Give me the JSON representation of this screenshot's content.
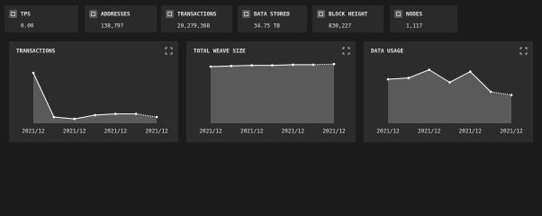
{
  "stats": [
    {
      "label": "TPS",
      "value": "0.00"
    },
    {
      "label": "ADDRESSES",
      "value": "138,797"
    },
    {
      "label": "TRANSACTIONS",
      "value": "20,279,368"
    },
    {
      "label": "DATA STORED",
      "value": "34.75 TB"
    },
    {
      "label": "BLOCK HEIGHT",
      "value": "830,227"
    },
    {
      "label": "NODES",
      "value": "1,117"
    }
  ],
  "chart_data": [
    {
      "type": "area",
      "title": "TRANSACTIONS",
      "categories": [
        "2021/12",
        null,
        "2021/12",
        null,
        "2021/12",
        null,
        "2021/12"
      ],
      "values": [
        80,
        10,
        7,
        13,
        15,
        15,
        10
      ],
      "ylim": [
        0,
        100
      ],
      "color": "#5a5a5a",
      "line_color": "#ffffff",
      "last_segment_dotted": true
    },
    {
      "type": "area",
      "title": "TOTAL WEAVE SIZE",
      "categories": [
        "2021/12",
        null,
        "2021/12",
        null,
        "2021/12",
        null,
        "2021/12"
      ],
      "values": [
        90,
        91,
        92,
        92,
        93,
        93,
        94
      ],
      "ylim": [
        0,
        100
      ],
      "color": "#5a5a5a",
      "line_color": "#ffffff",
      "last_segment_dotted": true
    },
    {
      "type": "area",
      "title": "DATA USAGE",
      "categories": [
        "2021/12",
        null,
        "2021/12",
        null,
        "2021/12",
        null,
        "2021/12"
      ],
      "values": [
        70,
        72,
        85,
        65,
        82,
        50,
        45
      ],
      "ylim": [
        0,
        100
      ],
      "color": "#5a5a5a",
      "line_color": "#ffffff",
      "last_segment_dotted": true
    }
  ]
}
